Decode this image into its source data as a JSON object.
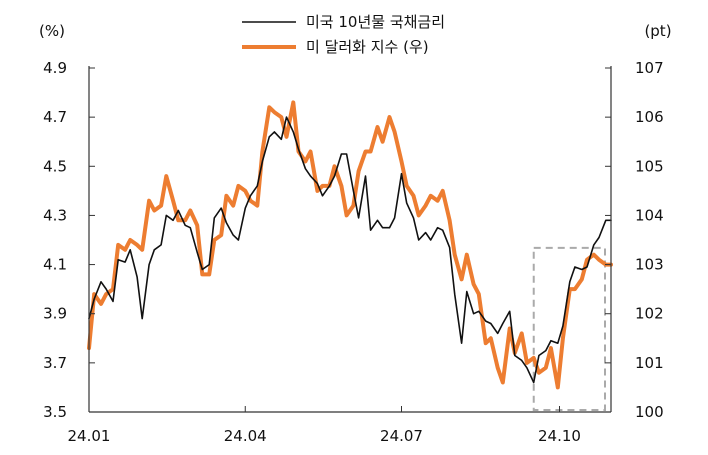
{
  "chart_data": {
    "type": "line",
    "left_axis": {
      "unit": "(%)",
      "range": [
        3.5,
        4.9
      ],
      "ticks": [
        "4.9",
        "4.7",
        "4.5",
        "4.3",
        "4.1",
        "3.9",
        "3.7",
        "3.5"
      ]
    },
    "right_axis": {
      "unit": "(pt)",
      "range": [
        100,
        107
      ],
      "ticks": [
        "107",
        "106",
        "105",
        "104",
        "103",
        "102",
        "101",
        "100"
      ]
    },
    "x_axis": {
      "range": [
        "2024-01-01",
        "2024-10-31"
      ],
      "ticks": [
        {
          "date": "2024-01-01",
          "label": "24.01"
        },
        {
          "date": "2024-04-01",
          "label": "24.04"
        },
        {
          "date": "2024-07-01",
          "label": "24.07"
        },
        {
          "date": "2024-10-01",
          "label": "24.10"
        }
      ]
    },
    "grid": false,
    "legend_position": "top-center",
    "highlight_box": {
      "from": "2024-09-16",
      "to": "2024-10-31",
      "style": "dashed",
      "color": "#aaaaaa"
    },
    "series": [
      {
        "name": "미국 10년물 국채금리",
        "axis": "left",
        "color": "#111111",
        "points": [
          [
            "2024-01-01",
            3.88
          ],
          [
            "2024-01-04",
            3.96
          ],
          [
            "2024-01-08",
            4.03
          ],
          [
            "2024-01-11",
            4.0
          ],
          [
            "2024-01-15",
            3.95
          ],
          [
            "2024-01-18",
            4.12
          ],
          [
            "2024-01-22",
            4.11
          ],
          [
            "2024-01-25",
            4.16
          ],
          [
            "2024-01-29",
            4.05
          ],
          [
            "2024-02-01",
            3.88
          ],
          [
            "2024-02-05",
            4.1
          ],
          [
            "2024-02-08",
            4.16
          ],
          [
            "2024-02-12",
            4.18
          ],
          [
            "2024-02-15",
            4.3
          ],
          [
            "2024-02-19",
            4.28
          ],
          [
            "2024-02-22",
            4.32
          ],
          [
            "2024-02-26",
            4.26
          ],
          [
            "2024-02-29",
            4.25
          ],
          [
            "2024-03-04",
            4.15
          ],
          [
            "2024-03-07",
            4.08
          ],
          [
            "2024-03-11",
            4.1
          ],
          [
            "2024-03-14",
            4.29
          ],
          [
            "2024-03-18",
            4.33
          ],
          [
            "2024-03-21",
            4.27
          ],
          [
            "2024-03-25",
            4.22
          ],
          [
            "2024-03-28",
            4.2
          ],
          [
            "2024-04-01",
            4.33
          ],
          [
            "2024-04-04",
            4.38
          ],
          [
            "2024-04-08",
            4.42
          ],
          [
            "2024-04-11",
            4.52
          ],
          [
            "2024-04-15",
            4.62
          ],
          [
            "2024-04-18",
            4.64
          ],
          [
            "2024-04-22",
            4.61
          ],
          [
            "2024-04-25",
            4.7
          ],
          [
            "2024-04-29",
            4.64
          ],
          [
            "2024-05-02",
            4.57
          ],
          [
            "2024-05-06",
            4.49
          ],
          [
            "2024-05-09",
            4.46
          ],
          [
            "2024-05-13",
            4.43
          ],
          [
            "2024-05-16",
            4.38
          ],
          [
            "2024-05-20",
            4.42
          ],
          [
            "2024-05-23",
            4.46
          ],
          [
            "2024-05-27",
            4.55
          ],
          [
            "2024-05-30",
            4.55
          ],
          [
            "2024-06-03",
            4.4
          ],
          [
            "2024-06-06",
            4.29
          ],
          [
            "2024-06-10",
            4.46
          ],
          [
            "2024-06-13",
            4.24
          ],
          [
            "2024-06-17",
            4.28
          ],
          [
            "2024-06-20",
            4.25
          ],
          [
            "2024-06-24",
            4.25
          ],
          [
            "2024-06-27",
            4.29
          ],
          [
            "2024-07-01",
            4.47
          ],
          [
            "2024-07-04",
            4.35
          ],
          [
            "2024-07-08",
            4.29
          ],
          [
            "2024-07-11",
            4.2
          ],
          [
            "2024-07-15",
            4.23
          ],
          [
            "2024-07-18",
            4.2
          ],
          [
            "2024-07-22",
            4.25
          ],
          [
            "2024-07-25",
            4.24
          ],
          [
            "2024-07-29",
            4.17
          ],
          [
            "2024-08-01",
            3.98
          ],
          [
            "2024-08-05",
            3.78
          ],
          [
            "2024-08-08",
            3.99
          ],
          [
            "2024-08-12",
            3.9
          ],
          [
            "2024-08-15",
            3.91
          ],
          [
            "2024-08-19",
            3.87
          ],
          [
            "2024-08-22",
            3.86
          ],
          [
            "2024-08-26",
            3.82
          ],
          [
            "2024-08-29",
            3.86
          ],
          [
            "2024-09-02",
            3.91
          ],
          [
            "2024-09-05",
            3.73
          ],
          [
            "2024-09-09",
            3.71
          ],
          [
            "2024-09-12",
            3.68
          ],
          [
            "2024-09-16",
            3.62
          ],
          [
            "2024-09-19",
            3.73
          ],
          [
            "2024-09-23",
            3.75
          ],
          [
            "2024-09-26",
            3.79
          ],
          [
            "2024-09-30",
            3.78
          ],
          [
            "2024-10-03",
            3.85
          ],
          [
            "2024-10-07",
            4.03
          ],
          [
            "2024-10-10",
            4.09
          ],
          [
            "2024-10-14",
            4.08
          ],
          [
            "2024-10-17",
            4.09
          ],
          [
            "2024-10-21",
            4.18
          ],
          [
            "2024-10-24",
            4.21
          ],
          [
            "2024-10-28",
            4.28
          ],
          [
            "2024-10-31",
            4.28
          ]
        ]
      },
      {
        "name": "미 달러화 지수 (우)",
        "axis": "right",
        "color": "#ed7d31",
        "points": [
          [
            "2024-01-01",
            101.3
          ],
          [
            "2024-01-04",
            102.4
          ],
          [
            "2024-01-08",
            102.2
          ],
          [
            "2024-01-11",
            102.4
          ],
          [
            "2024-01-15",
            102.5
          ],
          [
            "2024-01-18",
            103.4
          ],
          [
            "2024-01-22",
            103.3
          ],
          [
            "2024-01-25",
            103.5
          ],
          [
            "2024-01-29",
            103.4
          ],
          [
            "2024-02-01",
            103.3
          ],
          [
            "2024-02-05",
            104.3
          ],
          [
            "2024-02-08",
            104.1
          ],
          [
            "2024-02-12",
            104.2
          ],
          [
            "2024-02-15",
            104.8
          ],
          [
            "2024-02-19",
            104.3
          ],
          [
            "2024-02-22",
            103.9
          ],
          [
            "2024-02-26",
            103.9
          ],
          [
            "2024-02-29",
            104.1
          ],
          [
            "2024-03-04",
            103.8
          ],
          [
            "2024-03-07",
            102.8
          ],
          [
            "2024-03-11",
            102.8
          ],
          [
            "2024-03-14",
            103.5
          ],
          [
            "2024-03-18",
            103.6
          ],
          [
            "2024-03-21",
            104.4
          ],
          [
            "2024-03-25",
            104.2
          ],
          [
            "2024-03-28",
            104.6
          ],
          [
            "2024-04-01",
            104.5
          ],
          [
            "2024-04-04",
            104.3
          ],
          [
            "2024-04-08",
            104.2
          ],
          [
            "2024-04-11",
            105.3
          ],
          [
            "2024-04-15",
            106.2
          ],
          [
            "2024-04-18",
            106.1
          ],
          [
            "2024-04-22",
            106.0
          ],
          [
            "2024-04-25",
            105.6
          ],
          [
            "2024-04-29",
            106.3
          ],
          [
            "2024-05-02",
            105.3
          ],
          [
            "2024-05-06",
            105.1
          ],
          [
            "2024-05-09",
            105.3
          ],
          [
            "2024-05-13",
            104.5
          ],
          [
            "2024-05-16",
            104.6
          ],
          [
            "2024-05-20",
            104.6
          ],
          [
            "2024-05-23",
            105.0
          ],
          [
            "2024-05-27",
            104.6
          ],
          [
            "2024-05-30",
            104.0
          ],
          [
            "2024-06-03",
            104.2
          ],
          [
            "2024-06-06",
            104.9
          ],
          [
            "2024-06-10",
            105.3
          ],
          [
            "2024-06-13",
            105.3
          ],
          [
            "2024-06-17",
            105.8
          ],
          [
            "2024-06-20",
            105.5
          ],
          [
            "2024-06-24",
            106.0
          ],
          [
            "2024-06-27",
            105.7
          ],
          [
            "2024-07-01",
            105.1
          ],
          [
            "2024-07-04",
            104.6
          ],
          [
            "2024-07-08",
            104.4
          ],
          [
            "2024-07-11",
            104.0
          ],
          [
            "2024-07-15",
            104.2
          ],
          [
            "2024-07-18",
            104.4
          ],
          [
            "2024-07-22",
            104.3
          ],
          [
            "2024-07-25",
            104.5
          ],
          [
            "2024-07-29",
            103.9
          ],
          [
            "2024-08-01",
            103.2
          ],
          [
            "2024-08-05",
            102.7
          ],
          [
            "2024-08-08",
            103.2
          ],
          [
            "2024-08-12",
            102.6
          ],
          [
            "2024-08-15",
            102.4
          ],
          [
            "2024-08-19",
            101.4
          ],
          [
            "2024-08-22",
            101.5
          ],
          [
            "2024-08-26",
            100.9
          ],
          [
            "2024-08-29",
            100.6
          ],
          [
            "2024-09-02",
            101.7
          ],
          [
            "2024-09-05",
            101.2
          ],
          [
            "2024-09-09",
            101.6
          ],
          [
            "2024-09-12",
            101.0
          ],
          [
            "2024-09-16",
            101.1
          ],
          [
            "2024-09-19",
            100.8
          ],
          [
            "2024-09-23",
            100.9
          ],
          [
            "2024-09-26",
            101.3
          ],
          [
            "2024-09-30",
            100.5
          ],
          [
            "2024-10-03",
            101.5
          ],
          [
            "2024-10-07",
            102.5
          ],
          [
            "2024-10-10",
            102.5
          ],
          [
            "2024-10-14",
            102.7
          ],
          [
            "2024-10-17",
            103.1
          ],
          [
            "2024-10-21",
            103.2
          ],
          [
            "2024-10-24",
            103.1
          ],
          [
            "2024-10-28",
            103.0
          ],
          [
            "2024-10-31",
            103.0
          ]
        ]
      }
    ]
  }
}
